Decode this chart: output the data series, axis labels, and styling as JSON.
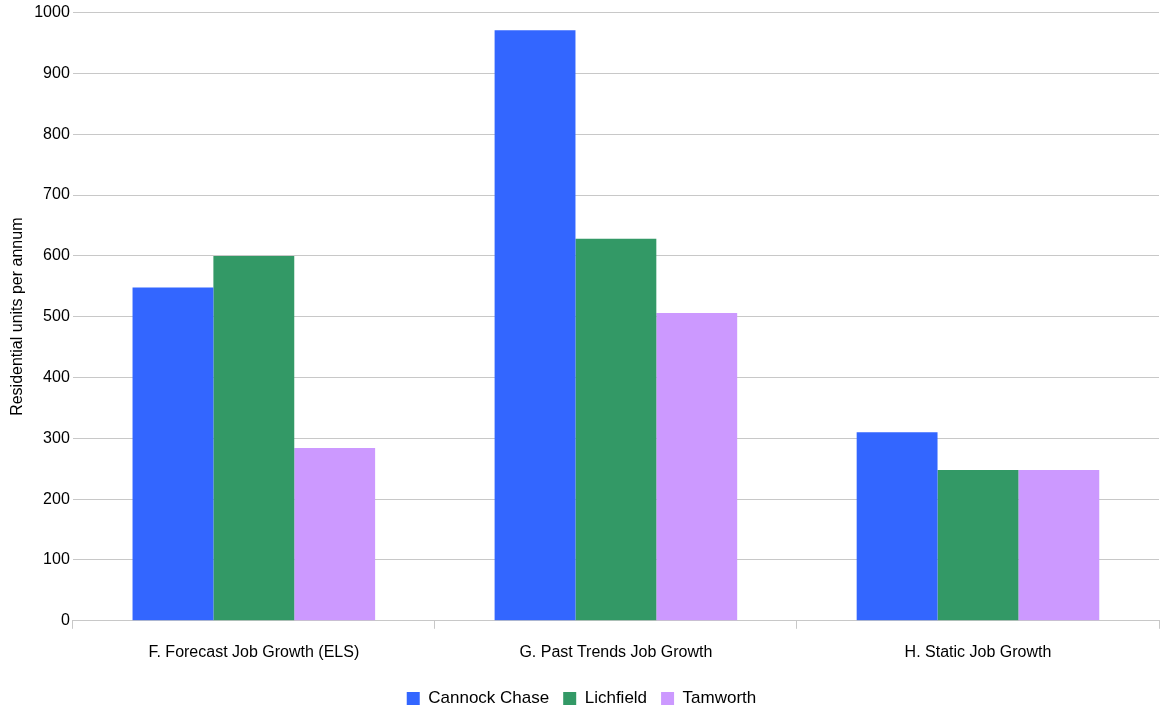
{
  "chart_data": {
    "type": "bar",
    "ylabel": "Residential units per annum",
    "categories": [
      "F. Forecast Job Growth (ELS)",
      "G. Past Trends Job Growth",
      "H. Static Job Growth"
    ],
    "series": [
      {
        "name": "Cannock Chase",
        "color": "#3366ff",
        "values": [
          548,
          971,
          310
        ]
      },
      {
        "name": "Lichfield",
        "color": "#339966",
        "values": [
          600,
          628,
          248
        ]
      },
      {
        "name": "Tamworth",
        "color": "#cc99ff",
        "values": [
          284,
          506,
          248
        ]
      }
    ],
    "ylim": [
      0,
      1000
    ],
    "yticks": [
      0,
      100,
      200,
      300,
      400,
      500,
      600,
      700,
      800,
      900,
      1000
    ],
    "grid": "y",
    "legend": "bottom"
  }
}
